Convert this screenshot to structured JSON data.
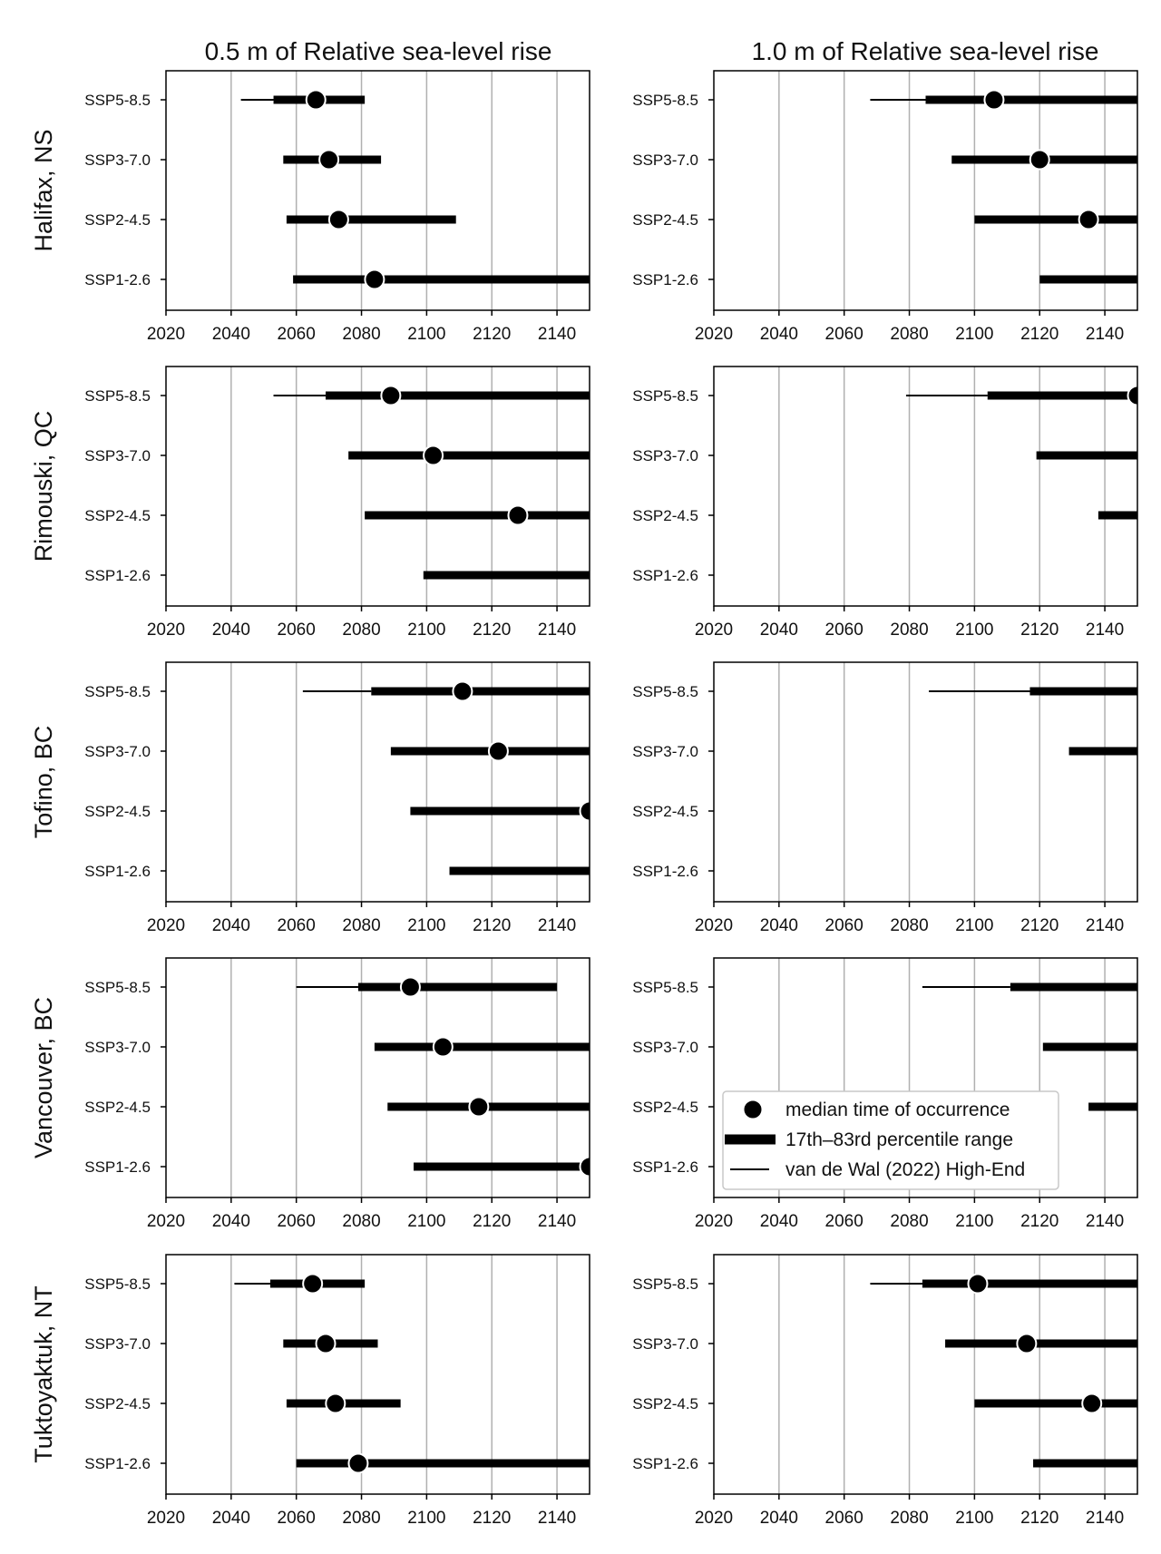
{
  "chart_data": {
    "type": "scatter",
    "col_titles": [
      "0.5 m of Relative sea-level rise",
      "1.0 m of Relative sea-level rise"
    ],
    "row_titles": [
      "Halifax, NS",
      "Rimouski, QC",
      "Tofino, BC",
      "Vancouver, BC",
      "Tuktoyaktuk, NT"
    ],
    "scenarios": [
      "SSP5-8.5",
      "SSP3-7.0",
      "SSP2-4.5",
      "SSP1-2.6"
    ],
    "xlim": [
      2020,
      2150
    ],
    "xticks": [
      2020,
      2040,
      2060,
      2080,
      2100,
      2120,
      2140
    ],
    "grid": "vertical",
    "legend": {
      "placement": "lower-left (Vancouver, BC / 1.0 m panel)",
      "entries": [
        "median time of occurrence",
        "17th–83rd percentile range",
        "van de Wal (2022) High-End"
      ]
    },
    "panels": [
      {
        "row": "Halifax, NS",
        "col": "0.5 m of Relative sea-level rise",
        "scenarios": [
          {
            "name": "SSP5-8.5",
            "median": 2066,
            "p17": 2053,
            "p83": 2081,
            "high_end_start": 2043
          },
          {
            "name": "SSP3-7.0",
            "median": 2070,
            "p17": 2056,
            "p83": 2086
          },
          {
            "name": "SSP2-4.5",
            "median": 2073,
            "p17": 2057,
            "p83": 2109
          },
          {
            "name": "SSP1-2.6",
            "median": 2084,
            "p17": 2059,
            "p83": 2150
          }
        ]
      },
      {
        "row": "Halifax, NS",
        "col": "1.0 m of Relative sea-level rise",
        "scenarios": [
          {
            "name": "SSP5-8.5",
            "median": 2106,
            "p17": 2085,
            "p83": 2150,
            "high_end_start": 2068
          },
          {
            "name": "SSP3-7.0",
            "median": 2120,
            "p17": 2093,
            "p83": 2150
          },
          {
            "name": "SSP2-4.5",
            "median": 2135,
            "p17": 2100,
            "p83": 2150
          },
          {
            "name": "SSP1-2.6",
            "median": null,
            "p17": 2120,
            "p83": 2150
          }
        ]
      },
      {
        "row": "Rimouski, QC",
        "col": "0.5 m of Relative sea-level rise",
        "scenarios": [
          {
            "name": "SSP5-8.5",
            "median": 2089,
            "p17": 2069,
            "p83": 2150,
            "high_end_start": 2053
          },
          {
            "name": "SSP3-7.0",
            "median": 2102,
            "p17": 2076,
            "p83": 2150
          },
          {
            "name": "SSP2-4.5",
            "median": 2128,
            "p17": 2081,
            "p83": 2150
          },
          {
            "name": "SSP1-2.6",
            "median": null,
            "p17": 2099,
            "p83": 2150
          }
        ]
      },
      {
        "row": "Rimouski, QC",
        "col": "1.0 m of Relative sea-level rise",
        "scenarios": [
          {
            "name": "SSP5-8.5",
            "median": 2150,
            "p17": 2104,
            "p83": 2150,
            "high_end_start": 2079
          },
          {
            "name": "SSP3-7.0",
            "median": null,
            "p17": 2119,
            "p83": 2150
          },
          {
            "name": "SSP2-4.5",
            "median": null,
            "p17": 2138,
            "p83": 2150
          },
          {
            "name": "SSP1-2.6",
            "median": null,
            "p17": null,
            "p83": null
          }
        ]
      },
      {
        "row": "Tofino, BC",
        "col": "0.5 m of Relative sea-level rise",
        "scenarios": [
          {
            "name": "SSP5-8.5",
            "median": 2111,
            "p17": 2083,
            "p83": 2150,
            "high_end_start": 2062
          },
          {
            "name": "SSP3-7.0",
            "median": 2122,
            "p17": 2089,
            "p83": 2150
          },
          {
            "name": "SSP2-4.5",
            "median": 2150,
            "p17": 2095,
            "p83": 2150
          },
          {
            "name": "SSP1-2.6",
            "median": null,
            "p17": 2107,
            "p83": 2150
          }
        ]
      },
      {
        "row": "Tofino, BC",
        "col": "1.0 m of Relative sea-level rise",
        "scenarios": [
          {
            "name": "SSP5-8.5",
            "median": null,
            "p17": 2117,
            "p83": 2150,
            "high_end_start": 2086
          },
          {
            "name": "SSP3-7.0",
            "median": null,
            "p17": 2129,
            "p83": 2150
          },
          {
            "name": "SSP2-4.5",
            "median": null,
            "p17": null,
            "p83": null
          },
          {
            "name": "SSP1-2.6",
            "median": null,
            "p17": null,
            "p83": null
          }
        ]
      },
      {
        "row": "Vancouver, BC",
        "col": "0.5 m of Relative sea-level rise",
        "scenarios": [
          {
            "name": "SSP5-8.5",
            "median": 2095,
            "p17": 2079,
            "p83": 2140,
            "high_end_start": 2060
          },
          {
            "name": "SSP3-7.0",
            "median": 2105,
            "p17": 2084,
            "p83": 2150
          },
          {
            "name": "SSP2-4.5",
            "median": 2116,
            "p17": 2088,
            "p83": 2150
          },
          {
            "name": "SSP1-2.6",
            "median": 2150,
            "p17": 2096,
            "p83": 2150
          }
        ]
      },
      {
        "row": "Vancouver, BC",
        "col": "1.0 m of Relative sea-level rise",
        "scenarios": [
          {
            "name": "SSP5-8.5",
            "median": null,
            "p17": 2111,
            "p83": 2150,
            "high_end_start": 2084
          },
          {
            "name": "SSP3-7.0",
            "median": null,
            "p17": 2121,
            "p83": 2150
          },
          {
            "name": "SSP2-4.5",
            "median": null,
            "p17": 2135,
            "p83": 2150
          },
          {
            "name": "SSP1-2.6",
            "median": null,
            "p17": null,
            "p83": null
          }
        ]
      },
      {
        "row": "Tuktoyaktuk, NT",
        "col": "0.5 m of Relative sea-level rise",
        "scenarios": [
          {
            "name": "SSP5-8.5",
            "median": 2065,
            "p17": 2052,
            "p83": 2081,
            "high_end_start": 2041
          },
          {
            "name": "SSP3-7.0",
            "median": 2069,
            "p17": 2056,
            "p83": 2085
          },
          {
            "name": "SSP2-4.5",
            "median": 2072,
            "p17": 2057,
            "p83": 2092
          },
          {
            "name": "SSP1-2.6",
            "median": 2079,
            "p17": 2060,
            "p83": 2150
          }
        ]
      },
      {
        "row": "Tuktoyaktuk, NT",
        "col": "1.0 m of Relative sea-level rise",
        "scenarios": [
          {
            "name": "SSP5-8.5",
            "median": 2101,
            "p17": 2084,
            "p83": 2150,
            "high_end_start": 2068
          },
          {
            "name": "SSP3-7.0",
            "median": 2116,
            "p17": 2091,
            "p83": 2150
          },
          {
            "name": "SSP2-4.5",
            "median": 2136,
            "p17": 2100,
            "p83": 2150
          },
          {
            "name": "SSP1-2.6",
            "median": null,
            "p17": 2118,
            "p83": 2150
          }
        ]
      }
    ]
  }
}
